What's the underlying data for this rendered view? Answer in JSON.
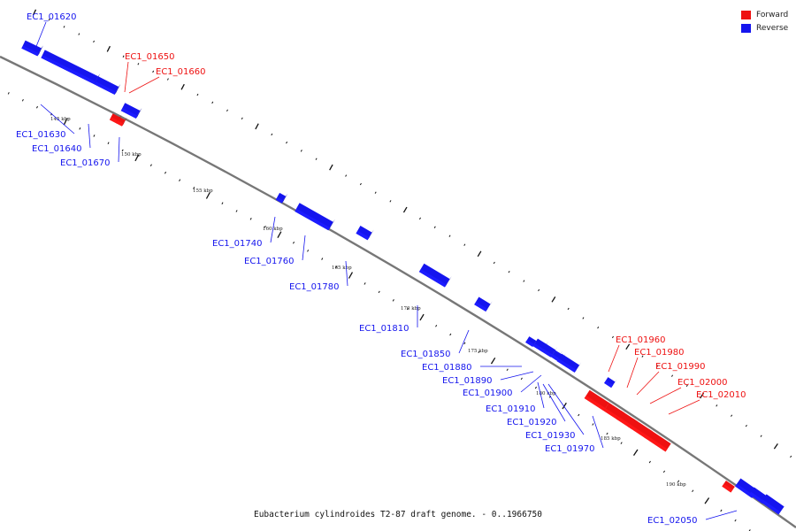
{
  "legend": {
    "forward_label": "Forward",
    "reverse_label": "Reverse",
    "forward_color": "#ee1111",
    "reverse_color": "#1515ee"
  },
  "caption": "Eubacterium cylindroides T2-87 draft genome. - 0..1966750",
  "tick_labels": [
    "145 kbp",
    "150 kbp",
    "155 kbp",
    "160 kbp",
    "165 kbp",
    "170 kbp",
    "175 kbp",
    "180 kbp",
    "185 kbp",
    "190 kbp"
  ],
  "genes": [
    {
      "label": "EC1_01620",
      "strand": "reverse"
    },
    {
      "label": "EC1_01630",
      "strand": "reverse"
    },
    {
      "label": "EC1_01640",
      "strand": "reverse"
    },
    {
      "label": "EC1_01650",
      "strand": "forward"
    },
    {
      "label": "EC1_01660",
      "strand": "forward"
    },
    {
      "label": "EC1_01670",
      "strand": "reverse"
    },
    {
      "label": "EC1_01740",
      "strand": "reverse"
    },
    {
      "label": "EC1_01760",
      "strand": "reverse"
    },
    {
      "label": "EC1_01780",
      "strand": "reverse"
    },
    {
      "label": "EC1_01810",
      "strand": "reverse"
    },
    {
      "label": "EC1_01850",
      "strand": "reverse"
    },
    {
      "label": "EC1_01880",
      "strand": "reverse"
    },
    {
      "label": "EC1_01890",
      "strand": "reverse"
    },
    {
      "label": "EC1_01900",
      "strand": "reverse"
    },
    {
      "label": "EC1_01910",
      "strand": "reverse"
    },
    {
      "label": "EC1_01920",
      "strand": "reverse"
    },
    {
      "label": "EC1_01930",
      "strand": "reverse"
    },
    {
      "label": "EC1_01970",
      "strand": "reverse"
    },
    {
      "label": "EC1_01960",
      "strand": "forward"
    },
    {
      "label": "EC1_01980",
      "strand": "forward"
    },
    {
      "label": "EC1_01990",
      "strand": "forward"
    },
    {
      "label": "EC1_02000",
      "strand": "forward"
    },
    {
      "label": "EC1_02010",
      "strand": "forward"
    },
    {
      "label": "EC1_02050",
      "strand": "reverse"
    }
  ]
}
